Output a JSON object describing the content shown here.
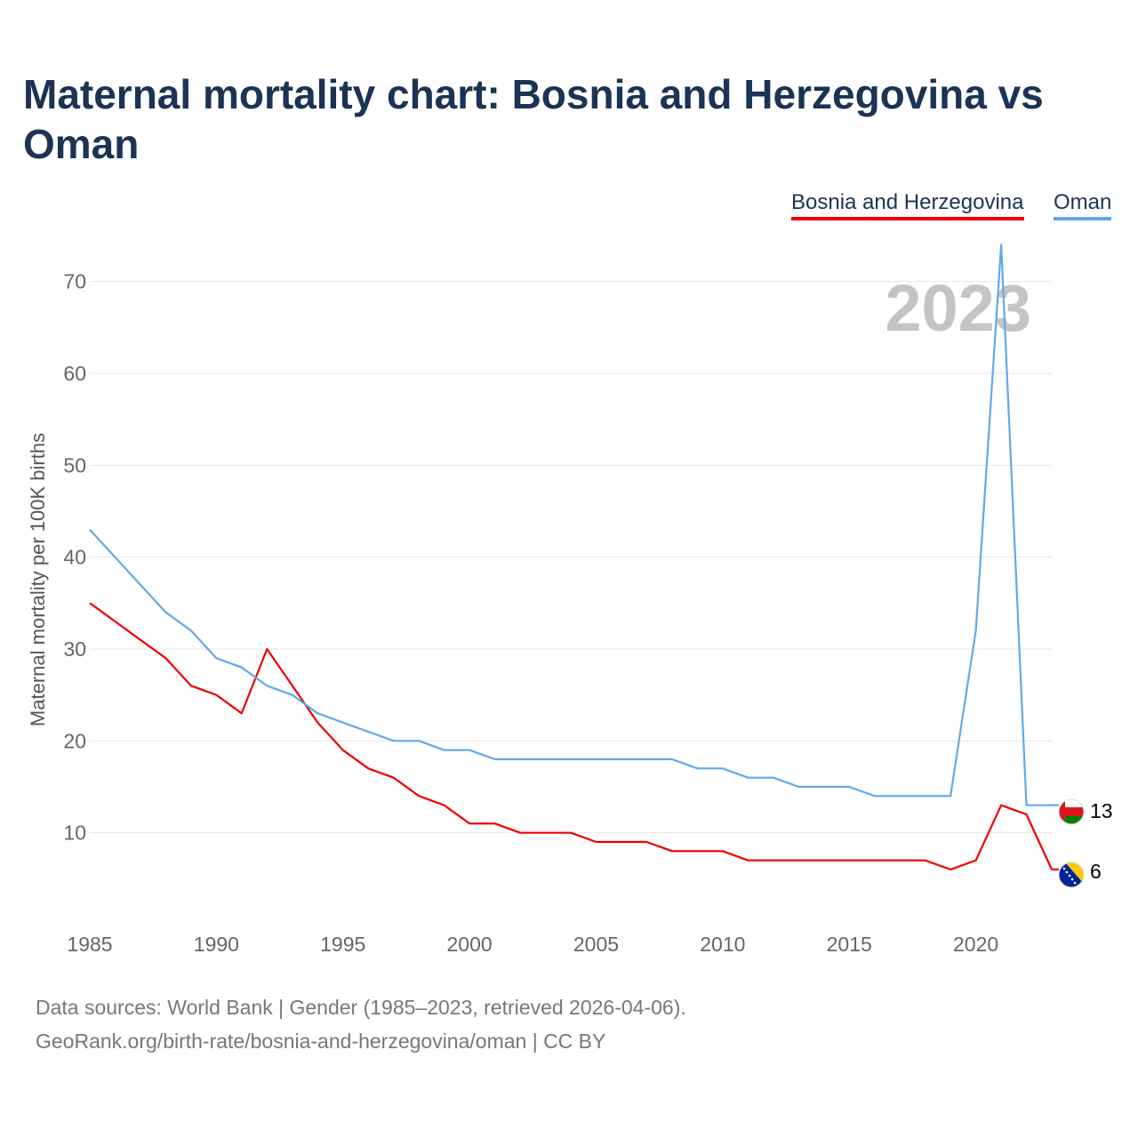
{
  "title": "Maternal mortality chart: Bosnia and Herzegovina vs Oman",
  "footer": {
    "sources": "Data sources: World Bank | Gender (1985–2023, retrieved 2026-04-06).",
    "credit": "GeoRank.org/birth-rate/bosnia-and-herzegovina/oman | CC BY"
  },
  "chart_data": {
    "type": "line",
    "title": "Maternal mortality chart: Bosnia and Herzegovina vs Oman",
    "xlabel": "",
    "ylabel": "Maternal mortality per 100K births",
    "current_year_label": "2023",
    "x": [
      1985,
      1986,
      1987,
      1988,
      1989,
      1990,
      1991,
      1992,
      1993,
      1994,
      1995,
      1996,
      1997,
      1998,
      1999,
      2000,
      2001,
      2002,
      2003,
      2004,
      2005,
      2006,
      2007,
      2008,
      2009,
      2010,
      2011,
      2012,
      2013,
      2014,
      2015,
      2016,
      2017,
      2018,
      2019,
      2020,
      2021,
      2022,
      2023
    ],
    "xlim": [
      1985,
      2023
    ],
    "ylim": [
      0,
      75
    ],
    "x_ticks": [
      1985,
      1990,
      1995,
      2000,
      2005,
      2010,
      2015,
      2020
    ],
    "y_ticks": [
      10,
      20,
      30,
      40,
      50,
      60,
      70
    ],
    "grid": true,
    "legend_position": "top-right",
    "series": [
      {
        "name": "Bosnia and Herzegovina",
        "color": "#ee0000",
        "flag_icon": "bosnia-flag-icon",
        "end_label": "6",
        "values": [
          35,
          33,
          31,
          29,
          26,
          25,
          23,
          30,
          26,
          22,
          19,
          17,
          16,
          14,
          13,
          11,
          11,
          10,
          10,
          10,
          9,
          9,
          9,
          8,
          8,
          8,
          7,
          7,
          7,
          7,
          7,
          7,
          7,
          7,
          6,
          7,
          13,
          12,
          6
        ]
      },
      {
        "name": "Oman",
        "color": "#62a8e8",
        "flag_icon": "oman-flag-icon",
        "end_label": "13",
        "values": [
          43,
          40,
          37,
          34,
          32,
          29,
          28,
          26,
          25,
          23,
          22,
          21,
          20,
          20,
          19,
          19,
          18,
          18,
          18,
          18,
          18,
          18,
          18,
          18,
          17,
          17,
          16,
          16,
          15,
          15,
          15,
          14,
          14,
          14,
          14,
          32,
          74,
          13,
          13
        ]
      }
    ]
  }
}
